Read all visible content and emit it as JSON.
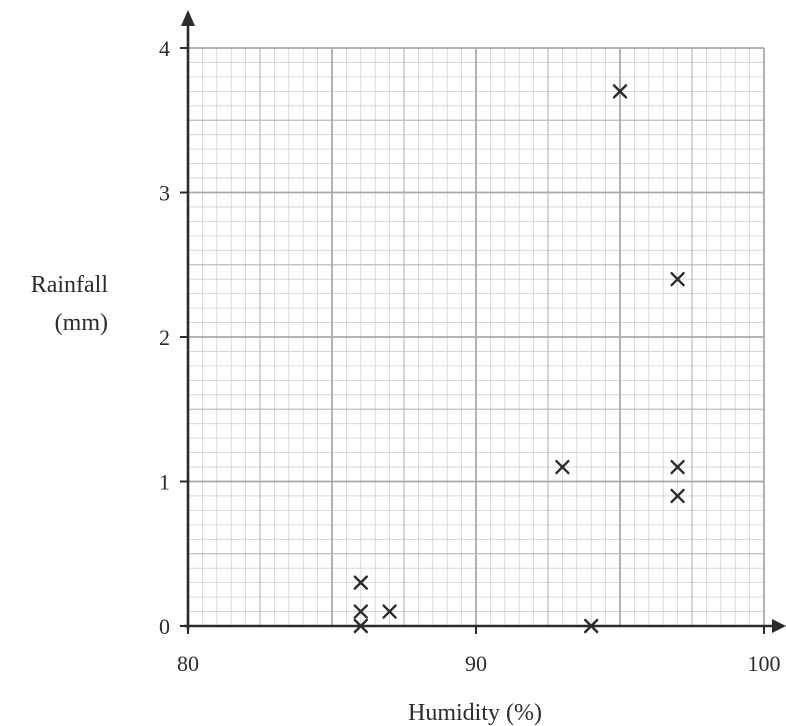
{
  "chart_data": {
    "type": "scatter",
    "title": "",
    "xlabel": "Humidity (%)",
    "ylabel_lines": [
      "Rainfall",
      "(mm)"
    ],
    "xlim": [
      80,
      100
    ],
    "ylim": [
      0,
      4
    ],
    "x_ticks": [
      80,
      90,
      100
    ],
    "y_ticks": [
      0,
      1,
      2,
      3,
      4
    ],
    "x_tick_labels": [
      "80",
      "90",
      "100"
    ],
    "y_tick_labels": [
      "0",
      "1",
      "2",
      "3",
      "4"
    ],
    "grid": true,
    "marker": "×",
    "points": [
      {
        "x": 86,
        "y": 0.3
      },
      {
        "x": 86,
        "y": 0.1
      },
      {
        "x": 86,
        "y": 0.0
      },
      {
        "x": 87,
        "y": 0.1
      },
      {
        "x": 93,
        "y": 1.1
      },
      {
        "x": 94,
        "y": 0.0
      },
      {
        "x": 95,
        "y": 3.7
      },
      {
        "x": 97,
        "y": 2.4
      },
      {
        "x": 97,
        "y": 1.1
      },
      {
        "x": 97,
        "y": 0.9
      }
    ]
  }
}
